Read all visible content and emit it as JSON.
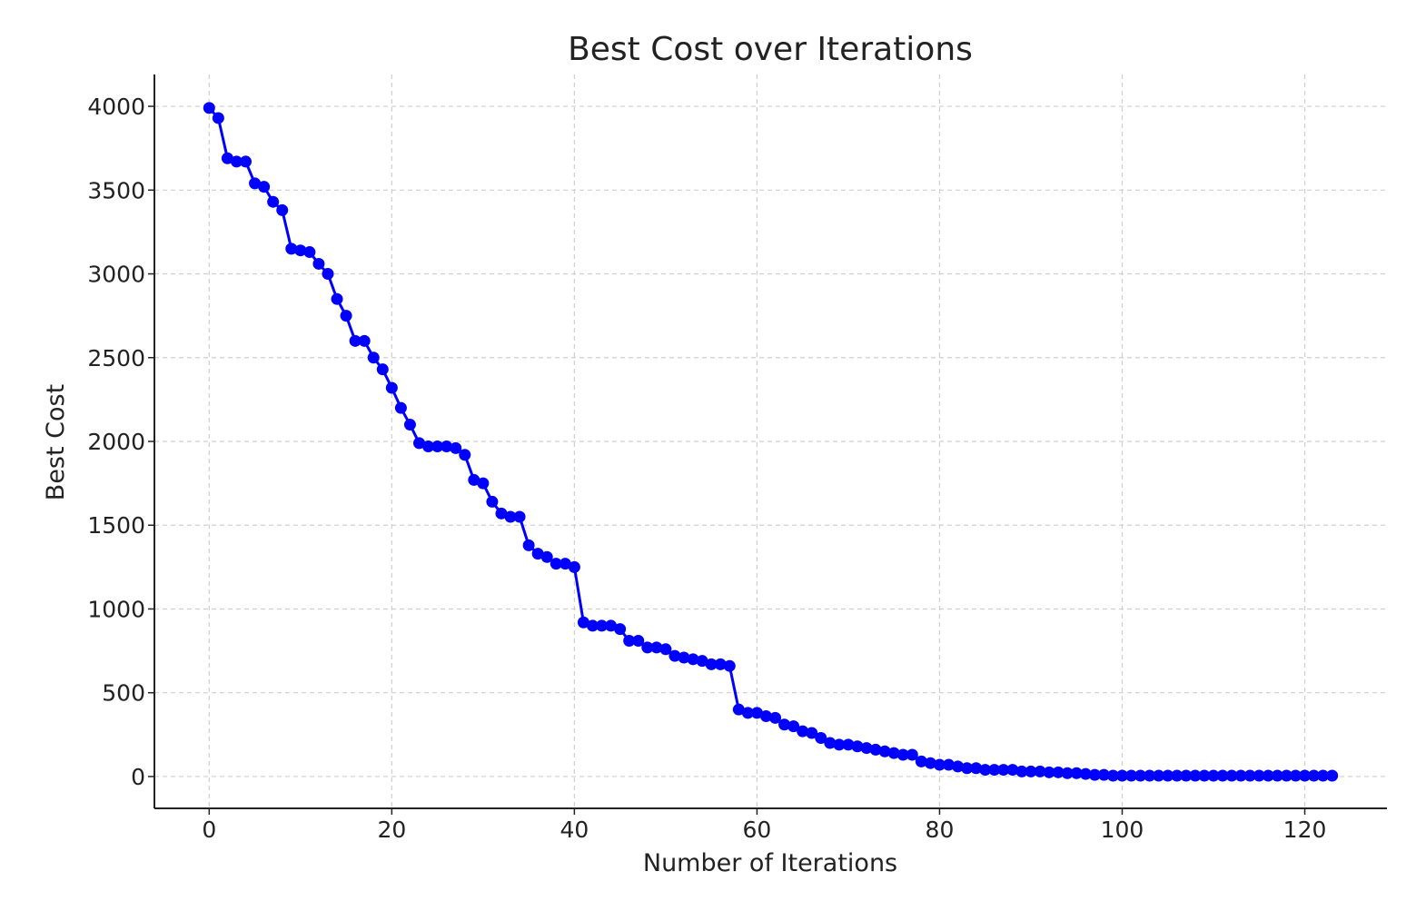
{
  "chart_data": {
    "type": "line",
    "title": "Best Cost over Iterations",
    "xlabel": "Number of Iterations",
    "ylabel": "Best Cost",
    "xlim": [
      -6,
      129
    ],
    "ylim": [
      -190,
      4190
    ],
    "xticks": [
      0,
      20,
      40,
      60,
      80,
      100,
      120
    ],
    "yticks": [
      0,
      500,
      1000,
      1500,
      2000,
      2500,
      3000,
      3500,
      4000
    ],
    "grid": true,
    "series_color": "#0000ff",
    "marker": "circle",
    "series": [
      {
        "x": [
          0,
          1,
          2,
          3,
          4,
          5,
          6,
          7,
          8,
          9,
          10,
          11,
          12,
          13,
          14,
          15,
          16,
          17,
          18,
          19,
          20,
          21,
          22,
          23,
          24,
          25,
          26,
          27,
          28,
          29,
          30,
          31,
          32,
          33,
          34,
          35,
          36,
          37,
          38,
          39,
          40,
          41,
          42,
          43,
          44,
          45,
          46,
          47,
          48,
          49,
          50,
          51,
          52,
          53,
          54,
          55,
          56,
          57,
          58,
          59,
          60,
          61,
          62,
          63,
          64,
          65,
          66,
          67,
          68,
          69,
          70,
          71,
          72,
          73,
          74,
          75,
          76,
          77,
          78,
          79,
          80,
          81,
          82,
          83,
          84,
          85,
          86,
          87,
          88,
          89,
          90,
          91,
          92,
          93,
          94,
          95,
          96,
          97,
          98,
          99,
          100,
          101,
          102,
          103,
          104,
          105,
          106,
          107,
          108,
          109,
          110,
          111,
          112,
          113,
          114,
          115,
          116,
          117,
          118,
          119,
          120,
          121,
          122,
          123
        ],
        "values": [
          3990,
          3930,
          3690,
          3670,
          3670,
          3540,
          3520,
          3430,
          3380,
          3150,
          3140,
          3130,
          3060,
          3000,
          2850,
          2750,
          2600,
          2600,
          2500,
          2430,
          2320,
          2200,
          2100,
          1990,
          1970,
          1970,
          1970,
          1960,
          1920,
          1770,
          1750,
          1640,
          1570,
          1550,
          1550,
          1380,
          1330,
          1310,
          1270,
          1270,
          1250,
          920,
          900,
          900,
          900,
          880,
          810,
          810,
          770,
          770,
          760,
          720,
          710,
          700,
          690,
          670,
          670,
          660,
          400,
          380,
          380,
          360,
          350,
          310,
          300,
          270,
          260,
          230,
          200,
          190,
          190,
          180,
          170,
          160,
          150,
          140,
          130,
          130,
          90,
          80,
          70,
          70,
          60,
          50,
          50,
          40,
          40,
          40,
          40,
          30,
          30,
          30,
          25,
          25,
          20,
          20,
          15,
          10,
          10,
          5,
          5,
          5,
          5,
          5,
          5,
          5,
          5,
          5,
          5,
          5,
          5,
          5,
          5,
          5,
          5,
          5,
          5,
          5,
          5,
          5,
          5,
          5,
          5,
          5
        ]
      }
    ]
  }
}
